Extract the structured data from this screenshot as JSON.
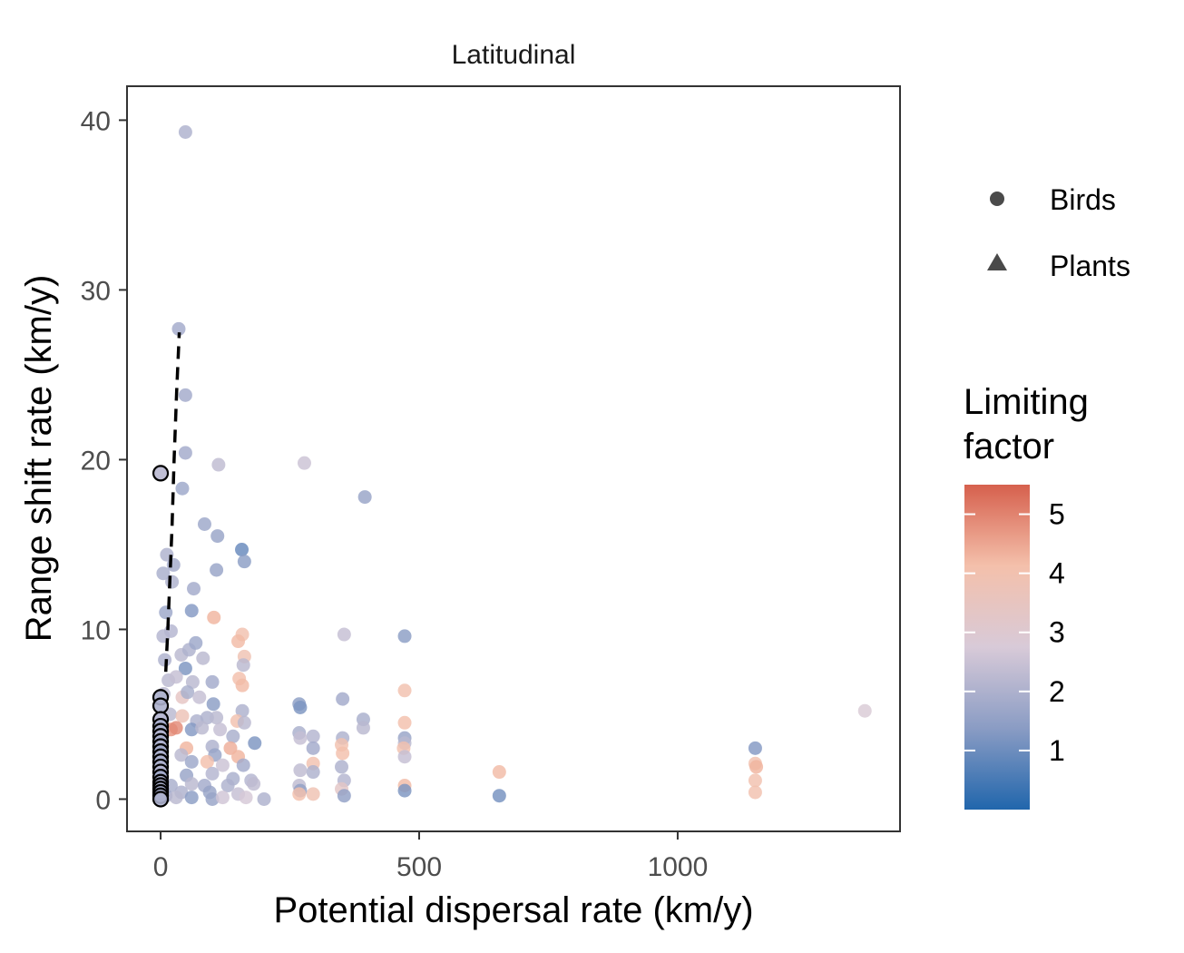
{
  "chart_data": {
    "type": "scatter",
    "panel_title": "Latitudinal",
    "xlabel": "Potential dispersal rate (km/y)",
    "ylabel": "Range shift rate (km/y)",
    "xlim": [
      -65,
      1430
    ],
    "ylim": [
      -1.9,
      42
    ],
    "x_ticks": [
      0,
      500,
      1000
    ],
    "x_tick_labels": [
      "0",
      "500",
      "1000"
    ],
    "y_ticks": [
      0,
      10,
      20,
      30,
      40
    ],
    "y_tick_labels": [
      "0",
      "10",
      "20",
      "30",
      "40"
    ],
    "grid": false,
    "shape_legend": {
      "entries": [
        {
          "label": "Birds",
          "shape": "circle"
        },
        {
          "label": "Plants",
          "shape": "triangle"
        }
      ]
    },
    "color_legend": {
      "title_lines": [
        "Limiting",
        "factor"
      ],
      "min": 0,
      "max": 5.5,
      "ticks": [
        1,
        2,
        3,
        4,
        5
      ],
      "tick_labels": [
        "1",
        "2",
        "3",
        "4",
        "5"
      ],
      "colors": [
        "#2166ac",
        "#8a9cc4",
        "#d8cad8",
        "#f4c0ab",
        "#d6604d"
      ]
    },
    "fit_line": {
      "style": "dashed",
      "color": "#000000",
      "points": [
        [
          10,
          7.5
        ],
        [
          14,
          10
        ],
        [
          18,
          13
        ],
        [
          22,
          16
        ],
        [
          26,
          20
        ],
        [
          31,
          24
        ],
        [
          36,
          27.5
        ]
      ]
    },
    "series": [
      {
        "name": "Birds",
        "shape": "circle",
        "points": [
          [
            48,
            39.3,
            2.0
          ],
          [
            35,
            27.7,
            1.8
          ],
          [
            48,
            23.8,
            1.8
          ],
          [
            48,
            20.4,
            1.8
          ],
          [
            42,
            18.3,
            1.7
          ],
          [
            112,
            19.7,
            2.3
          ],
          [
            278,
            19.8,
            2.5
          ],
          [
            395,
            17.8,
            1.6
          ],
          [
            85,
            16.2,
            1.7
          ],
          [
            110,
            15.5,
            1.6
          ],
          [
            157,
            14.7,
            0.9
          ],
          [
            162,
            14.0,
            1.4
          ],
          [
            12,
            14.4,
            2.0
          ],
          [
            25,
            13.8,
            1.8
          ],
          [
            5,
            13.3,
            1.9
          ],
          [
            22,
            12.8,
            2.0
          ],
          [
            108,
            13.5,
            1.6
          ],
          [
            64,
            12.4,
            1.8
          ],
          [
            10,
            11.0,
            1.7
          ],
          [
            60,
            11.1,
            1.3
          ],
          [
            103,
            10.7,
            4.3
          ],
          [
            20,
            9.9,
            2.1
          ],
          [
            158,
            9.7,
            4.0
          ],
          [
            355,
            9.7,
            2.4
          ],
          [
            472,
            9.6,
            1.4
          ],
          [
            5,
            9.6,
            2.1
          ],
          [
            8,
            8.2,
            2.0
          ],
          [
            40,
            8.5,
            2.2
          ],
          [
            55,
            8.8,
            2.0
          ],
          [
            68,
            9.2,
            1.7
          ],
          [
            82,
            8.3,
            2.2
          ],
          [
            150,
            9.3,
            4.2
          ],
          [
            162,
            8.4,
            3.9
          ],
          [
            160,
            7.9,
            2.2
          ],
          [
            48,
            7.7,
            1.2
          ],
          [
            15,
            7.0,
            2.2
          ],
          [
            30,
            7.2,
            2.4
          ],
          [
            62,
            6.9,
            2.2
          ],
          [
            100,
            6.9,
            1.8
          ],
          [
            152,
            7.1,
            4.1
          ],
          [
            158,
            6.7,
            4.2
          ],
          [
            472,
            6.4,
            4.0
          ],
          [
            6,
            6.2,
            2.2
          ],
          [
            42,
            6.0,
            3.4
          ],
          [
            52,
            6.3,
            1.9
          ],
          [
            75,
            6.0,
            2.4
          ],
          [
            102,
            5.6,
            1.4
          ],
          [
            158,
            5.2,
            2.0
          ],
          [
            268,
            5.6,
            1.4
          ],
          [
            270,
            5.4,
            1.2
          ],
          [
            352,
            5.9,
            1.8
          ],
          [
            1362,
            5.2,
            2.8
          ],
          [
            18,
            5.0,
            2.2
          ],
          [
            42,
            4.9,
            3.8
          ],
          [
            70,
            4.6,
            2.0
          ],
          [
            90,
            4.8,
            2.0
          ],
          [
            108,
            4.8,
            2.2
          ],
          [
            148,
            4.6,
            4.0
          ],
          [
            162,
            4.5,
            2.2
          ],
          [
            392,
            4.7,
            1.9
          ],
          [
            472,
            4.5,
            4.1
          ],
          [
            392,
            4.2,
            2.2
          ],
          [
            20,
            4.1,
            4.8
          ],
          [
            30,
            4.2,
            4.9
          ],
          [
            60,
            4.1,
            1.3
          ],
          [
            80,
            4.2,
            2.2
          ],
          [
            115,
            4.1,
            2.4
          ],
          [
            268,
            3.9,
            1.9
          ],
          [
            295,
            3.7,
            2.1
          ],
          [
            352,
            3.6,
            2.0
          ],
          [
            472,
            3.6,
            1.6
          ],
          [
            472,
            3.3,
            2.2
          ],
          [
            470,
            3.0,
            4.0
          ],
          [
            140,
            3.7,
            1.9
          ],
          [
            182,
            3.3,
            1.2
          ],
          [
            270,
            3.6,
            2.4
          ],
          [
            350,
            3.2,
            4.0
          ],
          [
            1150,
            3.0,
            1.3
          ],
          [
            50,
            3.0,
            4.3
          ],
          [
            100,
            3.1,
            2.0
          ],
          [
            135,
            3.0,
            4.4
          ],
          [
            295,
            3.0,
            1.8
          ],
          [
            352,
            2.7,
            4.1
          ],
          [
            472,
            2.5,
            2.4
          ],
          [
            40,
            2.6,
            2.2
          ],
          [
            105,
            2.6,
            1.6
          ],
          [
            150,
            2.5,
            4.3
          ],
          [
            1150,
            2.1,
            4.0
          ],
          [
            1152,
            1.9,
            4.3
          ],
          [
            295,
            2.1,
            4.0
          ],
          [
            350,
            1.9,
            2.0
          ],
          [
            60,
            2.2,
            1.7
          ],
          [
            90,
            2.2,
            4.1
          ],
          [
            120,
            2.0,
            2.5
          ],
          [
            160,
            2.0,
            1.8
          ],
          [
            295,
            1.6,
            2.0
          ],
          [
            270,
            1.7,
            2.3
          ],
          [
            655,
            1.6,
            4.2
          ],
          [
            50,
            1.4,
            1.6
          ],
          [
            100,
            1.5,
            2.1
          ],
          [
            140,
            1.2,
            1.9
          ],
          [
            175,
            1.1,
            2.1
          ],
          [
            355,
            1.1,
            2.1
          ],
          [
            1150,
            1.1,
            4.0
          ],
          [
            20,
            0.8,
            1.9
          ],
          [
            60,
            0.9,
            2.2
          ],
          [
            85,
            0.8,
            1.8
          ],
          [
            130,
            0.8,
            2.0
          ],
          [
            180,
            0.9,
            2.3
          ],
          [
            268,
            0.8,
            2.3
          ],
          [
            472,
            0.8,
            4.2
          ],
          [
            350,
            0.6,
            3.3
          ],
          [
            270,
            0.5,
            1.5
          ],
          [
            472,
            0.5,
            1.2
          ],
          [
            40,
            0.4,
            2.0
          ],
          [
            95,
            0.4,
            1.6
          ],
          [
            150,
            0.3,
            2.4
          ],
          [
            268,
            0.3,
            4.1
          ],
          [
            295,
            0.3,
            3.9
          ],
          [
            355,
            0.2,
            1.5
          ],
          [
            1150,
            0.4,
            4.0
          ],
          [
            655,
            0.2,
            1.1
          ],
          [
            10,
            0.2,
            1.8
          ],
          [
            30,
            0.1,
            2.2
          ],
          [
            60,
            0.1,
            1.4
          ],
          [
            100,
            0.0,
            1.6
          ],
          [
            120,
            0.1,
            2.6
          ],
          [
            165,
            0.1,
            2.7
          ],
          [
            200,
            0.0,
            2.0
          ]
        ]
      },
      {
        "name": "Plants",
        "shape": "triangle",
        "points": [
          [
            0,
            19.2,
            2.2
          ],
          [
            0,
            6.0,
            2.0
          ],
          [
            0,
            5.5,
            2.0
          ],
          [
            0,
            4.7,
            2.1
          ],
          [
            0,
            4.3,
            1.9
          ],
          [
            0,
            4.0,
            2.0
          ],
          [
            0,
            3.7,
            2.1
          ],
          [
            0,
            3.4,
            1.9
          ],
          [
            0,
            3.1,
            2.0
          ],
          [
            0,
            2.8,
            1.8
          ],
          [
            0,
            2.5,
            2.0
          ],
          [
            0,
            2.2,
            1.9
          ],
          [
            0,
            1.9,
            2.0
          ],
          [
            0,
            1.6,
            2.1
          ],
          [
            0,
            1.3,
            1.8
          ],
          [
            0,
            1.0,
            2.0
          ],
          [
            0,
            0.8,
            1.9
          ],
          [
            0,
            0.6,
            2.0
          ],
          [
            0,
            0.4,
            1.8
          ],
          [
            0,
            0.2,
            1.9
          ],
          [
            0,
            0.0,
            2.0
          ]
        ]
      }
    ]
  }
}
